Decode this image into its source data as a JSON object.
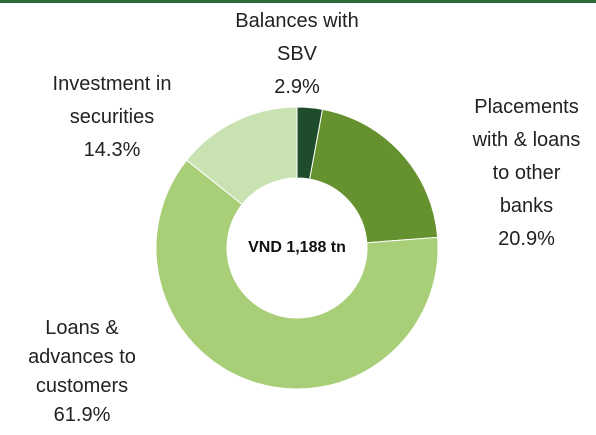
{
  "chart_data": {
    "type": "donut",
    "categories": [
      "Balances with SBV",
      "Placements with & loans to other banks",
      "Loans & advances to customers",
      "Investment in securities"
    ],
    "values": [
      2.9,
      20.9,
      61.9,
      14.3
    ],
    "value_labels": [
      "2.9%",
      "20.9%",
      "61.9%",
      "14.3%"
    ],
    "colors": [
      "#1f4d2c",
      "#65912f",
      "#a8cf78",
      "#c9e2b2"
    ],
    "center_label": "VND 1,188 tn"
  }
}
